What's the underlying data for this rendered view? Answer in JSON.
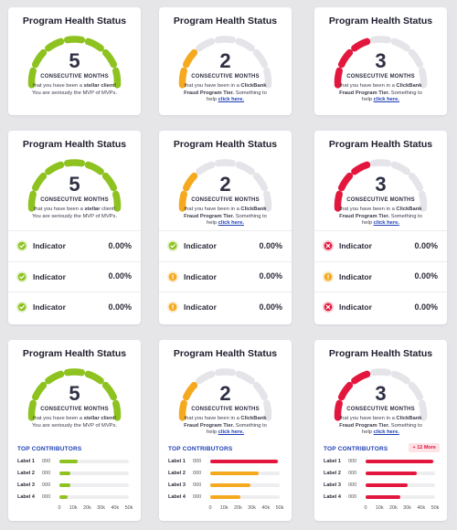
{
  "rows": [
    {
      "cards": [
        {
          "title": "Program Health Status",
          "value": 5,
          "label": "CONSECUTIVE MONTHS",
          "description": [
            {
              "text": "that you have been a "
            },
            {
              "text": "stellar client",
              "style": "bold"
            },
            {
              "text": "! You are seriously the MVP of MVPs."
            }
          ],
          "gauge": {
            "filled": 7,
            "total": 7,
            "color": "#8dc21f"
          }
        },
        {
          "title": "Program Health Status",
          "value": 2,
          "label": "CONSECUTIVE MONTHS",
          "description": [
            {
              "text": "that you have been in a "
            },
            {
              "text": "ClickBank Fraud Program Tier.",
              "style": "bold"
            },
            {
              "text": " Something to help "
            },
            {
              "text": "click here.",
              "style": "link"
            }
          ],
          "gauge": {
            "filled": 2,
            "total": 7,
            "color": "#f5a91e"
          }
        },
        {
          "title": "Program Health Status",
          "value": 3,
          "label": "CONSECUTIVE MONTHS",
          "description": [
            {
              "text": "that you have been in a "
            },
            {
              "text": "ClickBank Fraud Program Tier.",
              "style": "bold"
            },
            {
              "text": " Something to help "
            },
            {
              "text": "click here.",
              "style": "link"
            }
          ],
          "gauge": {
            "filled": 3,
            "total": 7,
            "color": "#e3173e"
          }
        }
      ]
    },
    {
      "cards": [
        {
          "title": "Program Health Status",
          "value": 5,
          "label": "CONSECUTIVE MONTHS",
          "description": [
            {
              "text": "that you have been a "
            },
            {
              "text": "stellar",
              "style": "bold"
            },
            {
              "text": " client! You are seriously the MVP of MVPs."
            }
          ],
          "gauge": {
            "filled": 7,
            "total": 7,
            "color": "#8dc21f"
          },
          "indicators": [
            {
              "status": "check",
              "label": "Indicator",
              "value": "0.00%"
            },
            {
              "status": "check",
              "label": "Indicator",
              "value": "0.00%"
            },
            {
              "status": "check",
              "label": "Indicator",
              "value": "0.00%"
            }
          ]
        },
        {
          "title": "Program Health Status",
          "value": 2,
          "label": "CONSECUTIVE MONTHS",
          "description": [
            {
              "text": "that you have been in a "
            },
            {
              "text": "ClickBank Fraud Program Tier.",
              "style": "bold"
            },
            {
              "text": " Something to help "
            },
            {
              "text": "click here.",
              "style": "link"
            }
          ],
          "gauge": {
            "filled": 2,
            "total": 7,
            "color": "#f5a91e"
          },
          "indicators": [
            {
              "status": "check",
              "label": "Indicator",
              "value": "0.00%"
            },
            {
              "status": "warning",
              "label": "Indicator",
              "value": "0.00%"
            },
            {
              "status": "warning",
              "label": "Indicator",
              "value": "0.00%"
            }
          ]
        },
        {
          "title": "Program Health Status",
          "value": 3,
          "label": "CONSECUTIVE MONTHS",
          "description": [
            {
              "text": "that you have been in a "
            },
            {
              "text": "ClickBank Fraud Program Tier.",
              "style": "bold"
            },
            {
              "text": " Something to help "
            },
            {
              "text": "click here.",
              "style": "link"
            }
          ],
          "gauge": {
            "filled": 3,
            "total": 7,
            "color": "#e3173e"
          },
          "indicators": [
            {
              "status": "error",
              "label": "Indicator",
              "value": "0.00%"
            },
            {
              "status": "warning",
              "label": "Indicator",
              "value": "0.00%"
            },
            {
              "status": "error",
              "label": "Indicator",
              "value": "0.00%"
            }
          ]
        }
      ]
    },
    {
      "cards": [
        {
          "title": "Program Health Status",
          "value": 5,
          "label": "CONSECUTIVE MONTHS",
          "description": [
            {
              "text": "that you have been a "
            },
            {
              "text": "stellar client",
              "style": "bold"
            },
            {
              "text": "! You are seriously the MVP of MVPs."
            }
          ],
          "gauge": {
            "filled": 7,
            "total": 7,
            "color": "#8dc21f"
          },
          "contributors": {
            "title": "TOP CONTRIBUTORS",
            "xlim": [
              0,
              50000
            ],
            "xticks": [
              0,
              {
                "value": 10000,
                "label": "10k"
              },
              {
                "value": 20000,
                "label": "20k"
              },
              {
                "value": 30000,
                "label": "30k"
              },
              {
                "value": 40000,
                "label": "40k"
              },
              {
                "value": 50000,
                "label": "50k"
              }
            ],
            "items": [
              {
                "label": "Label 1",
                "amount": "000",
                "value": 13000,
                "color": "#8dc21f"
              },
              {
                "label": "Label 2",
                "amount": "000",
                "value": 8000,
                "color": "#8dc21f"
              },
              {
                "label": "Label 3",
                "amount": "000",
                "value": 8000,
                "color": "#8dc21f"
              },
              {
                "label": "Label 4",
                "amount": "000",
                "value": 6000,
                "color": "#8dc21f"
              }
            ]
          }
        },
        {
          "title": "Program Health Status",
          "value": 2,
          "label": "CONSECUTIVE MONTHS",
          "description": [
            {
              "text": "that you have been in a "
            },
            {
              "text": "ClickBank Fraud Program Tier.",
              "style": "bold"
            },
            {
              "text": " Something to help "
            },
            {
              "text": "click here.",
              "style": "link"
            }
          ],
          "gauge": {
            "filled": 2,
            "total": 7,
            "color": "#f5a91e"
          },
          "contributors": {
            "title": "TOP CONTRIBUTORS",
            "xlim": [
              0,
              50000
            ],
            "xticks": [
              0,
              {
                "value": 10000,
                "label": "10k"
              },
              {
                "value": 20000,
                "label": "20k"
              },
              {
                "value": 30000,
                "label": "30k"
              },
              {
                "value": 40000,
                "label": "40k"
              },
              {
                "value": 50000,
                "label": "50k"
              }
            ],
            "items": [
              {
                "label": "Label 1",
                "amount": "000",
                "value": 49000,
                "color": "#e3173e"
              },
              {
                "label": "Label 2",
                "amount": "000",
                "value": 35000,
                "color": "#f5a91e"
              },
              {
                "label": "Label 3",
                "amount": "000",
                "value": 29000,
                "color": "#f5a91e"
              },
              {
                "label": "Label 4",
                "amount": "000",
                "value": 22000,
                "color": "#f5a91e"
              }
            ]
          }
        },
        {
          "title": "Program Health Status",
          "value": 3,
          "label": "CONSECUTIVE MONTHS",
          "description": [
            {
              "text": "that you have been in a "
            },
            {
              "text": "ClickBank Fraud Program Tier.",
              "style": "bold"
            },
            {
              "text": " Something to help "
            },
            {
              "text": "click here.",
              "style": "link"
            }
          ],
          "gauge": {
            "filled": 3,
            "total": 7,
            "color": "#e3173e"
          },
          "contributors": {
            "title": "TOP CONTRIBUTORS",
            "more": "+ 12 More",
            "xlim": [
              0,
              50000
            ],
            "xticks": [
              0,
              {
                "value": 10000,
                "label": "10k"
              },
              {
                "value": 20000,
                "label": "20k"
              },
              {
                "value": 30000,
                "label": "30k"
              },
              {
                "value": 40000,
                "label": "40k"
              },
              {
                "value": 50000,
                "label": "50k"
              }
            ],
            "items": [
              {
                "label": "Label 1",
                "amount": "000",
                "value": 49000,
                "color": "#e3173e"
              },
              {
                "label": "Label 2",
                "amount": "000",
                "value": 37000,
                "color": "#e3173e"
              },
              {
                "label": "Label 3",
                "amount": "000",
                "value": 30000,
                "color": "#e3173e"
              },
              {
                "label": "Label 4",
                "amount": "000",
                "value": 25000,
                "color": "#e3173e"
              }
            ]
          }
        }
      ]
    }
  ]
}
